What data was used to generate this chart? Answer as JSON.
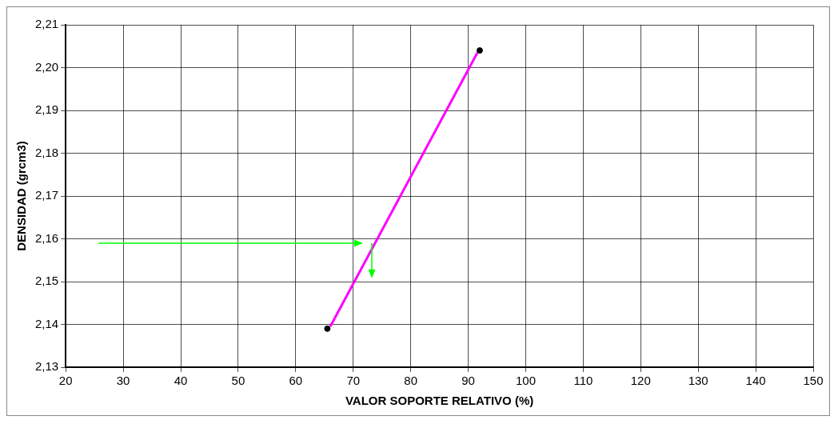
{
  "chart_data": {
    "type": "scatter",
    "xlabel": "VALOR SOPORTE RELATIVO (%)",
    "ylabel": "DENSIDAD (grcm3)",
    "xlim": [
      20,
      150
    ],
    "xticks": [
      20,
      30,
      40,
      50,
      60,
      70,
      80,
      90,
      100,
      110,
      120,
      130,
      140,
      150
    ],
    "ylim": [
      2.13,
      2.21
    ],
    "yticks": [
      {
        "value": 2.13,
        "label": "2,13"
      },
      {
        "value": 2.14,
        "label": "2,14"
      },
      {
        "value": 2.15,
        "label": "2,15"
      },
      {
        "value": 2.16,
        "label": "2,16"
      },
      {
        "value": 2.17,
        "label": "2,17"
      },
      {
        "value": 2.18,
        "label": "2,18"
      },
      {
        "value": 2.19,
        "label": "2,19"
      },
      {
        "value": 2.2,
        "label": "2,20"
      },
      {
        "value": 2.21,
        "label": "2,21"
      }
    ],
    "grid": true,
    "legend": false,
    "series": [
      {
        "type": "line",
        "color": "#ff00ff",
        "x": [
          66,
          91.6
        ],
        "values": [
          2.1395,
          2.2035
        ],
        "marker": "none"
      },
      {
        "color": "#000000",
        "x": [
          65.5,
          92
        ],
        "values": [
          2.139,
          2.204
        ],
        "marker": "circle"
      }
    ]
  }
}
